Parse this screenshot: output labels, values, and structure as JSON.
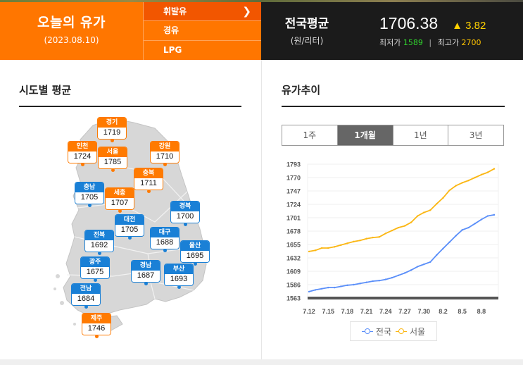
{
  "header": {
    "today_title": "오늘의 유가",
    "today_date": "(2023.08.10)",
    "fuel_menu": [
      {
        "label": "휘발유",
        "active": true,
        "icon": "chevron-right-icon"
      },
      {
        "label": "경유",
        "active": false
      },
      {
        "label": "LPG",
        "active": false
      }
    ],
    "national": {
      "title": "전국평균",
      "unit": "(원/리터)",
      "price": "1706.38",
      "change_symbol": "▲",
      "change": "3.82",
      "min_label": "최저가",
      "min_value": "1589",
      "separator": "|",
      "max_label": "최고가",
      "max_value": "2700"
    }
  },
  "regional": {
    "title": "시도별 평균",
    "regions": [
      {
        "name": "경기",
        "value": "1719",
        "color": "orange"
      },
      {
        "name": "인천",
        "value": "1724",
        "color": "orange"
      },
      {
        "name": "서울",
        "value": "1785",
        "color": "orange"
      },
      {
        "name": "강원",
        "value": "1710",
        "color": "orange"
      },
      {
        "name": "충북",
        "value": "1711",
        "color": "orange"
      },
      {
        "name": "충남",
        "value": "1705",
        "color": "blue"
      },
      {
        "name": "세종",
        "value": "1707",
        "color": "orange"
      },
      {
        "name": "경북",
        "value": "1700",
        "color": "blue"
      },
      {
        "name": "대전",
        "value": "1705",
        "color": "blue"
      },
      {
        "name": "전북",
        "value": "1692",
        "color": "blue"
      },
      {
        "name": "대구",
        "value": "1688",
        "color": "blue"
      },
      {
        "name": "울산",
        "value": "1695",
        "color": "blue"
      },
      {
        "name": "광주",
        "value": "1675",
        "color": "blue"
      },
      {
        "name": "경남",
        "value": "1687",
        "color": "blue"
      },
      {
        "name": "부산",
        "value": "1693",
        "color": "blue"
      },
      {
        "name": "전남",
        "value": "1684",
        "color": "blue"
      },
      {
        "name": "제주",
        "value": "1746",
        "color": "orange"
      }
    ]
  },
  "trend": {
    "title": "유가추이",
    "tabs": [
      {
        "label": "1주",
        "active": false
      },
      {
        "label": "1개월",
        "active": true
      },
      {
        "label": "1년",
        "active": false
      },
      {
        "label": "3년",
        "active": false
      }
    ]
  },
  "chart_data": {
    "type": "line",
    "title": "",
    "xlabel": "",
    "ylabel": "",
    "ylim": [
      1563,
      1793
    ],
    "yticks": [
      1793,
      1770,
      1747,
      1724,
      1701,
      1678,
      1655,
      1632,
      1609,
      1586,
      1563
    ],
    "xtick_labels": [
      "7.12",
      "7.15",
      "7.18",
      "7.21",
      "7.24",
      "7.27",
      "7.30",
      "8.2",
      "8.5",
      "8.8"
    ],
    "x": [
      "7.12",
      "7.13",
      "7.14",
      "7.15",
      "7.16",
      "7.17",
      "7.18",
      "7.19",
      "7.20",
      "7.21",
      "7.22",
      "7.23",
      "7.24",
      "7.25",
      "7.26",
      "7.27",
      "7.28",
      "7.29",
      "7.30",
      "7.31",
      "8.1",
      "8.2",
      "8.3",
      "8.4",
      "8.5",
      "8.6",
      "8.7",
      "8.8",
      "8.9",
      "8.10"
    ],
    "grid": true,
    "legend": "bottom",
    "series": [
      {
        "name": "전국",
        "color": "#5b8ff9",
        "values": [
          1574,
          1577,
          1579,
          1581,
          1581,
          1583,
          1585,
          1586,
          1588,
          1590,
          1592,
          1593,
          1595,
          1598,
          1602,
          1606,
          1611,
          1617,
          1621,
          1625,
          1637,
          1648,
          1659,
          1670,
          1680,
          1684,
          1691,
          1698,
          1704,
          1706
        ]
      },
      {
        "name": "서울",
        "color": "#fbb714",
        "values": [
          1643,
          1645,
          1649,
          1649,
          1651,
          1654,
          1657,
          1660,
          1662,
          1665,
          1667,
          1668,
          1674,
          1679,
          1684,
          1687,
          1693,
          1704,
          1710,
          1714,
          1725,
          1735,
          1748,
          1756,
          1761,
          1765,
          1770,
          1775,
          1779,
          1785
        ]
      }
    ]
  }
}
